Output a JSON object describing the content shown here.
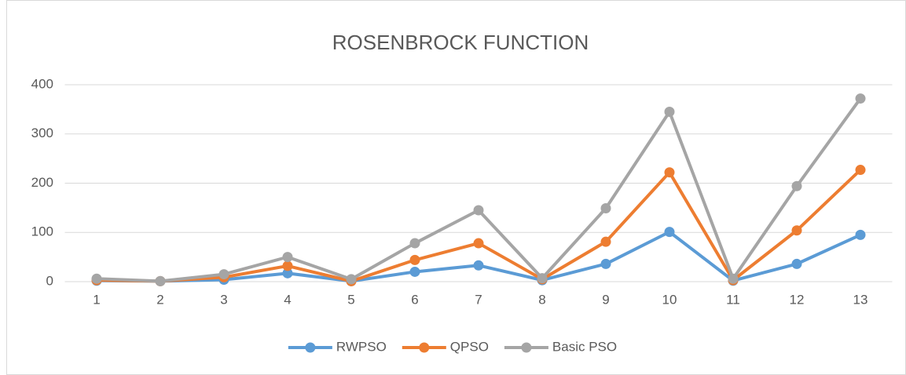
{
  "chart_data": {
    "type": "line",
    "title": "ROSENBROCK FUNCTION",
    "categories": [
      "1",
      "2",
      "3",
      "4",
      "5",
      "6",
      "7",
      "8",
      "9",
      "10",
      "11",
      "12",
      "13"
    ],
    "series": [
      {
        "name": "RWPSO",
        "color": "#5b9bd5",
        "values": [
          2,
          1,
          4,
          17,
          1,
          20,
          33,
          3,
          36,
          101,
          2,
          36,
          95
        ]
      },
      {
        "name": "QPSO",
        "color": "#ed7d31",
        "values": [
          3,
          1,
          9,
          32,
          1,
          44,
          78,
          5,
          81,
          222,
          3,
          104,
          227
        ]
      },
      {
        "name": "Basic PSO",
        "color": "#a5a5a5",
        "values": [
          6,
          1,
          15,
          50,
          5,
          78,
          145,
          7,
          149,
          345,
          6,
          194,
          372
        ]
      }
    ],
    "ylim": [
      0,
      400
    ],
    "yticks": [
      0,
      100,
      200,
      300,
      400
    ],
    "grid": true,
    "legend": "bottom"
  }
}
